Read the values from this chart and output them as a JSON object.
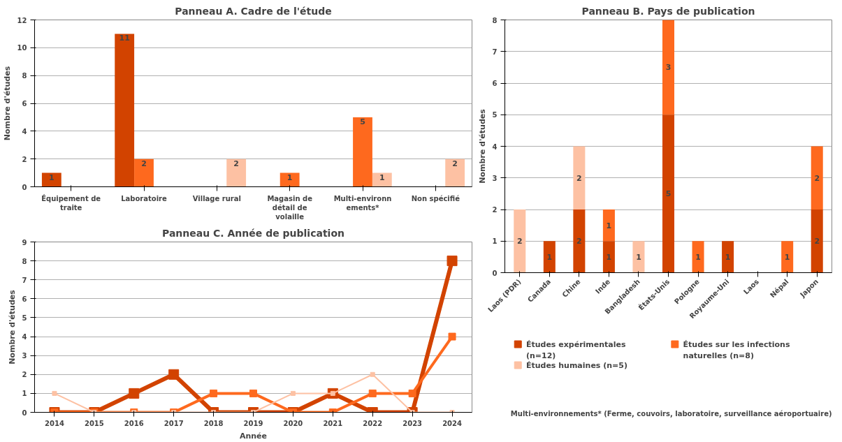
{
  "chart_data": [
    {
      "type": "bar",
      "title": "Panneau A. Cadre de l'étude",
      "ylabel": "Nombre d'études",
      "categories": [
        "Équipement de traite",
        "Laboratoire",
        "Village rural",
        "Magasin de détail de volaille",
        "Multi-environnements*",
        "Non spécifié"
      ],
      "series": [
        {
          "color": "#d24300",
          "values": [
            1,
            11,
            null,
            null,
            null,
            null
          ]
        },
        {
          "color": "#fe691e",
          "values": [
            null,
            2,
            null,
            1,
            5,
            null
          ]
        },
        {
          "color": "#fdc1a3",
          "values": [
            null,
            null,
            2,
            null,
            1,
            2
          ]
        }
      ],
      "ylim": [
        0,
        12
      ],
      "yticks": [
        0,
        2,
        4,
        6,
        8,
        10,
        12
      ],
      "grid": "y",
      "data_labels": true,
      "legend": false
    },
    {
      "type": "line",
      "title": "Panneau C. Année de publication",
      "xlabel": "Année",
      "ylabel": "Nombre d'études",
      "categories": [
        "2014",
        "2015",
        "2016",
        "2017",
        "2018",
        "2019",
        "2020",
        "2021",
        "2022",
        "2023",
        "2024"
      ],
      "series": [
        {
          "color": "#d24300",
          "values": [
            0,
            0,
            1,
            2,
            0,
            0,
            0,
            1,
            0,
            0,
            8
          ]
        },
        {
          "color": "#fe691e",
          "values": [
            0,
            0,
            0,
            0,
            1,
            1,
            0,
            0,
            1,
            1,
            4
          ]
        },
        {
          "color": "#fdc1a3",
          "values": [
            1,
            0,
            0,
            0,
            0,
            0,
            1,
            1,
            2,
            0,
            0
          ]
        }
      ],
      "ylim": [
        0,
        9
      ],
      "yticks": [
        0,
        1,
        2,
        3,
        4,
        5,
        6,
        7,
        8,
        9
      ],
      "grid": "y",
      "marker": "square",
      "legend": false
    },
    {
      "type": "bar",
      "stacked": true,
      "title": "Panneau B. Pays de publication",
      "ylabel": "Nombre d'études",
      "categories": [
        "Laos (PDR)",
        "Canada",
        "Chine",
        "Inde",
        "Bangladesh",
        "États-Unis",
        "Pologne",
        "Royaume-Uni",
        "Laos",
        "Népal",
        "Japon"
      ],
      "series": [
        {
          "name": "Études expérimentales (n=12)",
          "color": "#d24300",
          "values": [
            null,
            1,
            2,
            1,
            null,
            5,
            null,
            1,
            null,
            null,
            2
          ]
        },
        {
          "name": "Études sur les infections naturelles (n=8)",
          "color": "#fe691e",
          "values": [
            null,
            null,
            null,
            1,
            null,
            3,
            1,
            null,
            null,
            1,
            2
          ]
        },
        {
          "name": "Études humaines (n=5)",
          "color": "#fdc1a3",
          "values": [
            2,
            null,
            2,
            null,
            1,
            null,
            null,
            null,
            null,
            null,
            null
          ]
        }
      ],
      "ylim": [
        0,
        8
      ],
      "yticks": [
        0,
        1,
        2,
        3,
        4,
        5,
        6,
        7,
        8
      ],
      "grid": "y",
      "data_labels": true,
      "legend": "bottom",
      "annotations": [
        "Multi-environnements* (Ferme, couvoirs, laboratoire, surveillance aéroportuaire)"
      ]
    }
  ]
}
